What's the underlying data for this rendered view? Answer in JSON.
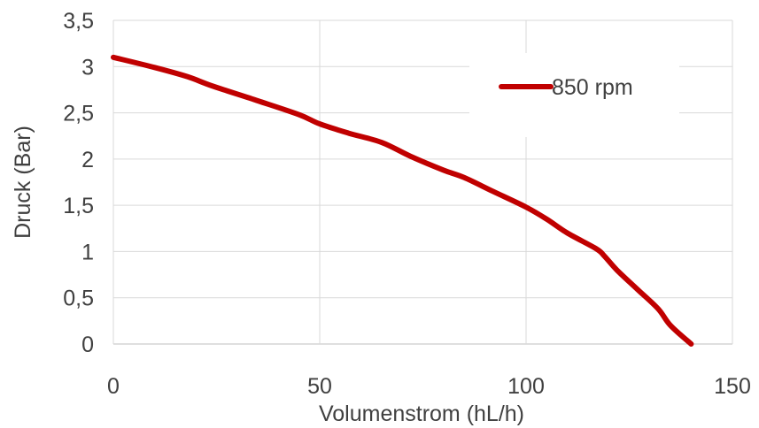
{
  "chart_data": {
    "type": "line",
    "title": "",
    "xlabel": "Volumenstrom (hL/h)",
    "ylabel": "Druck (Bar)",
    "xlim": [
      0,
      150
    ],
    "ylim": [
      0,
      3.5
    ],
    "x_ticks": [
      "0",
      "50",
      "100",
      "150"
    ],
    "y_ticks": [
      "0",
      "0,5",
      "1",
      "1,5",
      "2",
      "2,5",
      "3",
      "3,5"
    ],
    "grid": true,
    "legend_position": "top-right",
    "series": [
      {
        "name": "850 rpm",
        "color": "#C00000",
        "x": [
          0,
          10,
          18,
          24,
          35,
          45,
          50,
          57,
          65,
          72,
          80,
          85,
          92,
          100,
          105,
          110,
          117,
          119,
          122,
          127,
          132,
          135,
          140
        ],
        "y": [
          3.1,
          2.99,
          2.89,
          2.79,
          2.63,
          2.48,
          2.38,
          2.28,
          2.18,
          2.03,
          1.88,
          1.8,
          1.65,
          1.48,
          1.35,
          1.2,
          1.03,
          0.95,
          0.8,
          0.59,
          0.38,
          0.2,
          0.0
        ]
      }
    ]
  }
}
